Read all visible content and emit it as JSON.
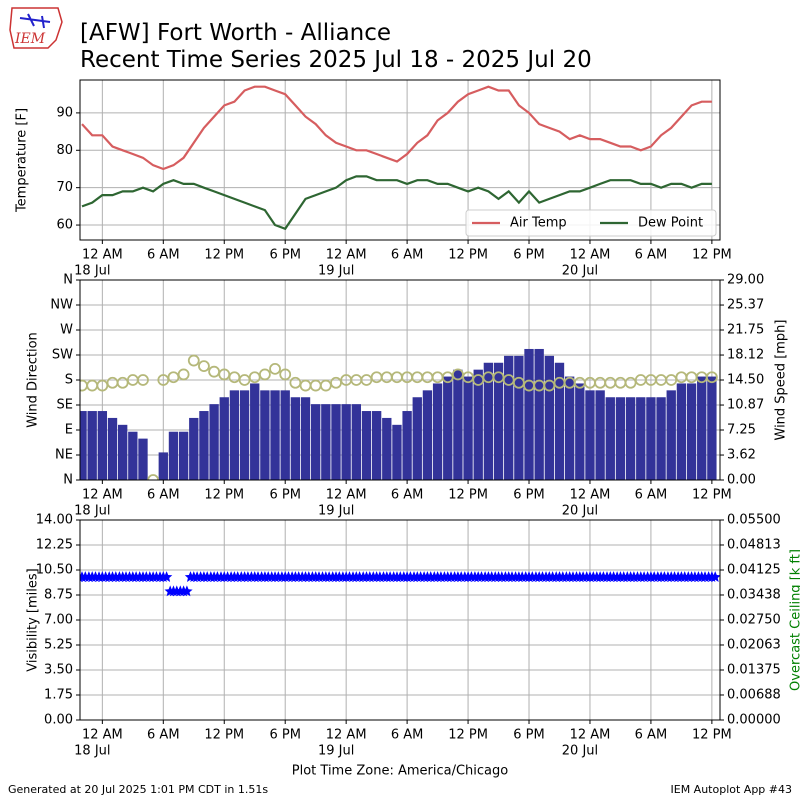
{
  "header": {
    "title": "[AFW] Fort Worth - Alliance",
    "subtitle": "Recent Time Series 2025 Jul 18 - 2025 Jul 20",
    "logo": "IEM"
  },
  "chart_data": [
    {
      "type": "line",
      "ylabel": "Temperature [F]",
      "x": [
        -2,
        -1,
        0,
        1,
        2,
        3,
        4,
        5,
        6,
        7,
        8,
        9,
        10,
        11,
        12,
        13,
        14,
        15,
        16,
        17,
        18,
        19,
        20,
        21,
        22,
        23,
        24,
        25,
        26,
        27,
        28,
        29,
        30,
        31,
        32,
        33,
        34,
        35,
        36,
        37,
        38,
        39,
        40,
        41,
        42,
        43,
        44,
        45,
        46,
        47,
        48,
        49,
        50,
        51,
        52,
        53,
        54,
        55,
        56,
        57,
        58,
        59,
        60
      ],
      "xlim": [
        -2.2,
        60.8
      ],
      "xticks": [
        {
          "value": 0,
          "label": "12 AM",
          "date": "18 Jul"
        },
        {
          "value": 6,
          "label": "6 AM"
        },
        {
          "value": 12,
          "label": "12 PM"
        },
        {
          "value": 18,
          "label": "6 PM"
        },
        {
          "value": 24,
          "label": "12 AM",
          "date": "19 Jul"
        },
        {
          "value": 30,
          "label": "6 AM"
        },
        {
          "value": 36,
          "label": "12 PM"
        },
        {
          "value": 42,
          "label": "6 PM"
        },
        {
          "value": 48,
          "label": "12 AM",
          "date": "20 Jul"
        },
        {
          "value": 54,
          "label": "6 AM"
        },
        {
          "value": 60,
          "label": "12 PM"
        }
      ],
      "ylim": [
        56,
        98.8
      ],
      "yticks": [
        60,
        70,
        80,
        90
      ],
      "grid": true,
      "legend": "lower right",
      "series": [
        {
          "name": "Air Temp",
          "color": "#d65d5f",
          "values": [
            87,
            84,
            84,
            81,
            80,
            79,
            78,
            76,
            75,
            76,
            78,
            82,
            86,
            89,
            92,
            93,
            96,
            97,
            97,
            96,
            95,
            92,
            89,
            87,
            84,
            82,
            81,
            80,
            80,
            79,
            78,
            77,
            79,
            82,
            84,
            88,
            90,
            93,
            95,
            96,
            97,
            96,
            96,
            92,
            90,
            87,
            86,
            85,
            83,
            84,
            83,
            83,
            82,
            81,
            81,
            80,
            81,
            84,
            86,
            89,
            92,
            93,
            93
          ]
        },
        {
          "name": "Dew Point",
          "color": "#2e6632",
          "values": [
            65,
            66,
            68,
            68,
            69,
            69,
            70,
            69,
            71,
            72,
            71,
            71,
            70,
            69,
            68,
            67,
            66,
            65,
            64,
            60,
            59,
            63,
            67,
            68,
            69,
            70,
            72,
            73,
            73,
            72,
            72,
            72,
            71,
            72,
            72,
            71,
            71,
            70,
            69,
            70,
            69,
            67,
            69,
            66,
            69,
            66,
            67,
            68,
            69,
            69,
            70,
            71,
            72,
            72,
            72,
            71,
            71,
            70,
            71,
            71,
            70,
            71,
            71
          ]
        }
      ]
    },
    {
      "type": "combo",
      "ylabel": "Wind Direction",
      "y2label": "Wind Speed [mph]",
      "x": [
        -2,
        -1,
        0,
        1,
        2,
        3,
        4,
        5,
        6,
        7,
        8,
        9,
        10,
        11,
        12,
        13,
        14,
        15,
        16,
        17,
        18,
        19,
        20,
        21,
        22,
        23,
        24,
        25,
        26,
        27,
        28,
        29,
        30,
        31,
        32,
        33,
        34,
        35,
        36,
        37,
        38,
        39,
        40,
        41,
        42,
        43,
        44,
        45,
        46,
        47,
        48,
        49,
        50,
        51,
        52,
        53,
        54,
        55,
        56,
        57,
        58,
        59,
        60
      ],
      "xlim": [
        -2.2,
        60.8
      ],
      "xticks": [
        {
          "value": 0,
          "label": "12 AM",
          "date": "18 Jul"
        },
        {
          "value": 6,
          "label": "6 AM"
        },
        {
          "value": 12,
          "label": "12 PM"
        },
        {
          "value": 18,
          "label": "6 PM"
        },
        {
          "value": 24,
          "label": "12 AM",
          "date": "19 Jul"
        },
        {
          "value": 30,
          "label": "6 AM"
        },
        {
          "value": 36,
          "label": "12 PM"
        },
        {
          "value": 42,
          "label": "6 PM"
        },
        {
          "value": 48,
          "label": "12 AM",
          "date": "20 Jul"
        },
        {
          "value": 54,
          "label": "6 AM"
        },
        {
          "value": 60,
          "label": "12 PM"
        }
      ],
      "ylim": [
        0,
        360
      ],
      "yticks": [
        {
          "value": 0,
          "label": "N"
        },
        {
          "value": 45,
          "label": "NE"
        },
        {
          "value": 90,
          "label": "E"
        },
        {
          "value": 135,
          "label": "SE"
        },
        {
          "value": 180,
          "label": "S"
        },
        {
          "value": 225,
          "label": "SW"
        },
        {
          "value": 270,
          "label": "W"
        },
        {
          "value": 315,
          "label": "NW"
        },
        {
          "value": 360,
          "label": "N"
        }
      ],
      "y2lim": [
        0,
        29
      ],
      "y2ticks": [
        {
          "value": 0,
          "label": "0.00"
        },
        3.62,
        7.25,
        10.87,
        {
          "value": 14.5,
          "label": "14.50"
        },
        18.12,
        21.75,
        25.37,
        {
          "value": 29,
          "label": "29.00"
        }
      ],
      "grid": true,
      "series": [
        {
          "type": "bar",
          "axis": "y2",
          "color": "#333399",
          "values": [
            10,
            10,
            10,
            9,
            8,
            7,
            6,
            0,
            4,
            7,
            7,
            9,
            10,
            11,
            12,
            13,
            13,
            14,
            13,
            13,
            13,
            12,
            12,
            11,
            11,
            11,
            11,
            11,
            10,
            10,
            9,
            8,
            10,
            12,
            13,
            14,
            15,
            16,
            15,
            16,
            17,
            17,
            18,
            18,
            19,
            19,
            18,
            17,
            15,
            14,
            13,
            13,
            12,
            12,
            12,
            12,
            12,
            12,
            13,
            14,
            14,
            15,
            15
          ]
        },
        {
          "type": "scatter",
          "color": "#b5b87a",
          "values": [
            170,
            170,
            170,
            175,
            175,
            180,
            180,
            0,
            180,
            185,
            190,
            215,
            205,
            195,
            190,
            185,
            180,
            185,
            190,
            200,
            190,
            175,
            170,
            170,
            170,
            175,
            180,
            180,
            180,
            185,
            185,
            185,
            185,
            185,
            185,
            185,
            185,
            190,
            185,
            180,
            185,
            185,
            180,
            175,
            170,
            170,
            170,
            175,
            175,
            175,
            175,
            175,
            175,
            175,
            175,
            180,
            180,
            180,
            180,
            185,
            185,
            185,
            185
          ]
        }
      ]
    },
    {
      "type": "scatter",
      "ylabel": "Visibility [miles]",
      "y2label": "Overcast Ceiling [k ft]",
      "y2label_color": "green",
      "xlabel": "Plot Time Zone: America/Chicago",
      "x": [
        -2,
        -1,
        0,
        1,
        2,
        3,
        4,
        5,
        6,
        7,
        8,
        9,
        10,
        11,
        12,
        13,
        14,
        15,
        16,
        17,
        18,
        19,
        20,
        21,
        22,
        23,
        24,
        25,
        26,
        27,
        28,
        29,
        30,
        31,
        32,
        33,
        34,
        35,
        36,
        37,
        38,
        39,
        40,
        41,
        42,
        43,
        44,
        45,
        46,
        47,
        48,
        49,
        50,
        51,
        52,
        53,
        54,
        55,
        56,
        57,
        58,
        59,
        60
      ],
      "xlim": [
        -2.2,
        60.8
      ],
      "xticks": [
        {
          "value": 0,
          "label": "12 AM",
          "date": "18 Jul"
        },
        {
          "value": 6,
          "label": "6 AM"
        },
        {
          "value": 12,
          "label": "12 PM"
        },
        {
          "value": 18,
          "label": "6 PM"
        },
        {
          "value": 24,
          "label": "12 AM",
          "date": "19 Jul"
        },
        {
          "value": 30,
          "label": "6 AM"
        },
        {
          "value": 36,
          "label": "12 PM"
        },
        {
          "value": 42,
          "label": "6 PM"
        },
        {
          "value": 48,
          "label": "12 AM",
          "date": "20 Jul"
        },
        {
          "value": 54,
          "label": "6 AM"
        },
        {
          "value": 60,
          "label": "12 PM"
        }
      ],
      "ylim": [
        0,
        14
      ],
      "yticks": [
        {
          "value": 0,
          "label": "0.00"
        },
        1.75,
        {
          "value": 3.5,
          "label": "3.50"
        },
        5.25,
        {
          "value": 7,
          "label": "7.00"
        },
        8.75,
        {
          "value": 10.5,
          "label": "10.50"
        },
        12.25,
        {
          "value": 14,
          "label": "14.00"
        }
      ],
      "y2lim": [
        0,
        0.055
      ],
      "y2ticks": [
        {
          "value": 0,
          "label": "0.00000"
        },
        0.00688,
        0.01375,
        0.02063,
        {
          "value": 0.0275,
          "label": "0.02750"
        },
        0.03438,
        0.04125,
        0.04813,
        {
          "value": 0.055,
          "label": "0.05500"
        }
      ],
      "grid": true,
      "series": [
        {
          "type": "scatter",
          "marker": "star",
          "color": "#0000ff",
          "values": [
            10,
            10,
            10,
            10,
            10,
            10,
            10,
            10,
            10,
            9,
            9,
            10,
            10,
            10,
            10,
            10,
            10,
            10,
            10,
            10,
            10,
            10,
            10,
            10,
            10,
            10,
            10,
            10,
            10,
            10,
            10,
            10,
            10,
            10,
            10,
            10,
            10,
            10,
            10,
            10,
            10,
            10,
            10,
            10,
            10,
            10,
            10,
            10,
            10,
            10,
            10,
            10,
            10,
            10,
            10,
            10,
            10,
            10,
            10,
            10,
            10,
            10,
            10
          ]
        }
      ]
    }
  ],
  "footer": {
    "generated": "Generated at 20 Jul 2025 1:01 PM CDT in 1.51s",
    "app": "IEM Autoplot App #43"
  }
}
